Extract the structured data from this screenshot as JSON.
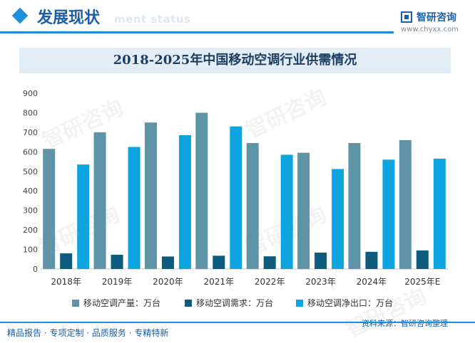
{
  "header": {
    "section_title": "发展现状",
    "section_subtitle": "ment status",
    "logo_name": "智研咨询",
    "logo_url": "www.chyxx.com"
  },
  "chart_data": {
    "type": "bar",
    "title": "2018-2025年中国移动空调行业供需情况",
    "categories": [
      "2018年",
      "2019年",
      "2020年",
      "2021年",
      "2022年",
      "2023年",
      "2024年",
      "2025年E"
    ],
    "ylim": [
      0,
      900
    ],
    "yticks": [
      0,
      100,
      200,
      300,
      400,
      500,
      600,
      700,
      800,
      900
    ],
    "series": [
      {
        "name": "移动空调产量：万台",
        "color": "#5f93a8",
        "values": [
          615,
          700,
          750,
          800,
          645,
          595,
          645,
          660
        ]
      },
      {
        "name": "移动空调需求：万台",
        "color": "#0d5b7d",
        "values": [
          80,
          73,
          64,
          68,
          65,
          84,
          88,
          95
        ]
      },
      {
        "name": "移动空调净出口：万台",
        "color": "#0ea4e0",
        "values": [
          535,
          625,
          685,
          730,
          585,
          512,
          560,
          565
        ]
      }
    ],
    "grid": false,
    "legend_position": "bottom"
  },
  "watermark": "智研咨询",
  "footer": {
    "services": "精品报告 · 专项定制 · 品质服务 · 专精特新",
    "source": "资料来源：智研咨询整理"
  }
}
